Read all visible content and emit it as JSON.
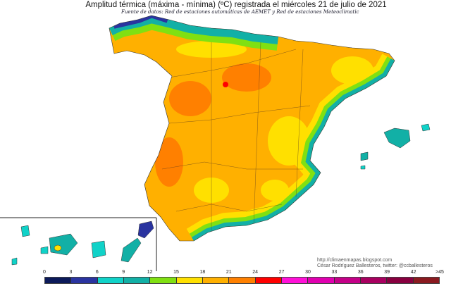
{
  "title": "Amplitud térmica (máxima - mínima) (ºC) registrada el miércoles 21 de julio de 2021",
  "source": "Fuente de datos: Red de estaciones automáticas de AEMET y Red de estaciones Meteoclimatic",
  "credits": {
    "url": "http://climaenmapas.blogspot.com",
    "author": "César Rodríguez Ballesteros, twitter: @ccballesteros"
  },
  "legend": {
    "ticks": [
      "0",
      "3",
      "6",
      "9",
      "12",
      "15",
      "18",
      "21",
      "24",
      "27",
      "30",
      "33",
      "36",
      "39",
      "42",
      ">45"
    ],
    "colors": [
      "#0c1a5a",
      "#2a34a0",
      "#10d2c8",
      "#12b0a6",
      "#80e012",
      "#ffe000",
      "#ffb000",
      "#ff8000",
      "#ff0000",
      "#ff10d8",
      "#e000b0",
      "#c40088",
      "#a80060",
      "#880040",
      "#8a1a20"
    ]
  }
}
